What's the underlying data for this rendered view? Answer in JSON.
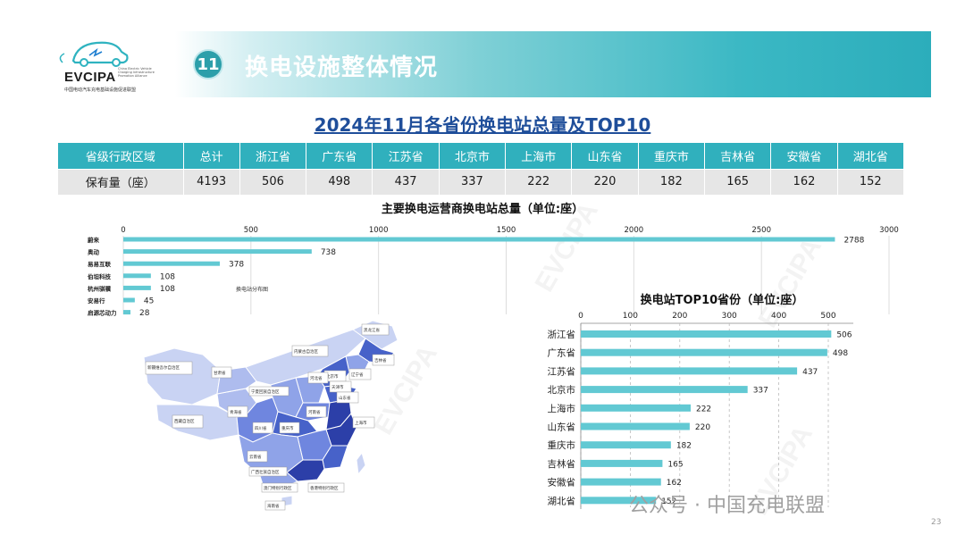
{
  "logo": {
    "brand": "EVCIPA",
    "tagline": "China Electric Vehicle Charging Infrastructure Promotion Alliance",
    "org_cn": "中国电动汽车充电基础设施促进联盟"
  },
  "header": {
    "section_number": "11",
    "title": "换电设施整体情况"
  },
  "section_title": "2024年11月各省份换电站总量及TOP10",
  "table": {
    "row_header": "省级行政区域",
    "row_label": "保有量（座）",
    "columns": [
      "总计",
      "浙江省",
      "广东省",
      "江苏省",
      "北京市",
      "上海市",
      "山东省",
      "重庆市",
      "吉林省",
      "安徽省",
      "湖北省"
    ],
    "values": [
      "4193",
      "506",
      "498",
      "437",
      "337",
      "222",
      "220",
      "182",
      "165",
      "162",
      "152"
    ]
  },
  "chart_data": [
    {
      "type": "bar",
      "orientation": "horizontal",
      "title": "主要换电运营商换电站总量（单位:座）",
      "categories": [
        "蔚来",
        "奥动",
        "易易互联",
        "伯坦科技",
        "杭州骐骥",
        "安易行",
        "启源芯动力"
      ],
      "values": [
        2788,
        738,
        378,
        108,
        108,
        45,
        28
      ],
      "xlim": [
        0,
        3000
      ],
      "xticks": [
        "0",
        "500",
        "1000",
        "1500",
        "2000",
        "2500",
        "3000"
      ],
      "grid": true,
      "color": "#62c9d3"
    },
    {
      "type": "bar",
      "orientation": "horizontal",
      "title": "换电站TOP10省份（单位:座）",
      "categories": [
        "浙江省",
        "广东省",
        "江苏省",
        "北京市",
        "上海市",
        "山东省",
        "重庆市",
        "吉林省",
        "安徽省",
        "湖北省"
      ],
      "values": [
        506,
        498,
        437,
        337,
        222,
        220,
        182,
        165,
        162,
        152
      ],
      "xlim": [
        0,
        500
      ],
      "xticks": [
        "0",
        "100",
        "200",
        "300",
        "400",
        "500"
      ],
      "grid": true,
      "color": "#62c9d3"
    }
  ],
  "map": {
    "title": "换电站分布图",
    "labels": [
      "新疆维吾尔自治区",
      "西藏自治区",
      "青海省",
      "甘肃省",
      "内蒙古自治区",
      "黑龙江省",
      "吉林省",
      "辽宁省",
      "北京市",
      "天津市",
      "河北省",
      "山东省",
      "河南省",
      "四川省",
      "重庆市",
      "云南省",
      "上海市",
      "广西壮族自治区",
      "海南省",
      "澳门特别行政区",
      "香港特别行政区",
      "宁夏回族自治区"
    ],
    "colors": {
      "light": "#c9d3f3",
      "mid": "#8fa3e8",
      "dark": "#4762c9",
      "darkest": "#2c3fa8"
    }
  },
  "credit": "公众号 · 中国充电联盟",
  "page_number": "23"
}
